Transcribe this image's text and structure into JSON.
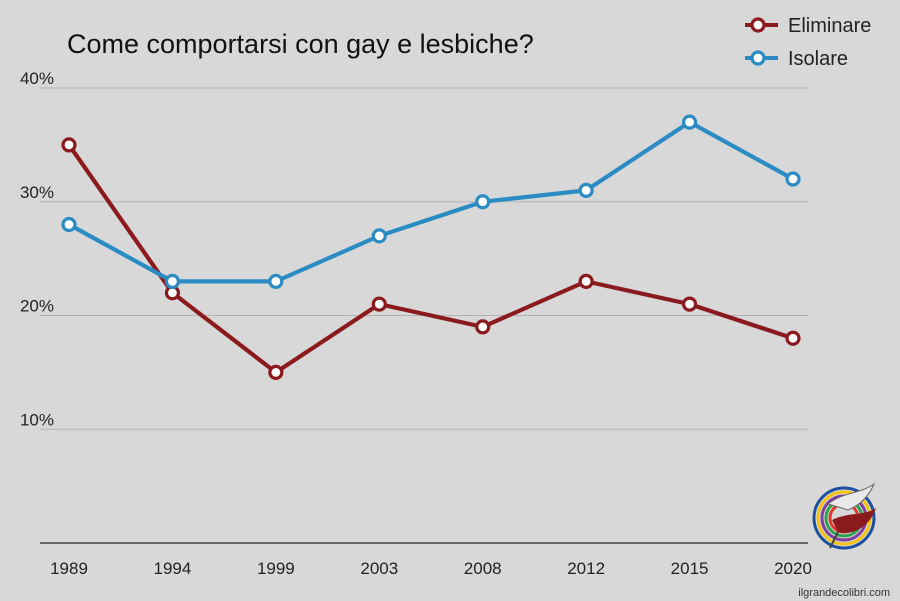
{
  "chart_data": {
    "type": "line",
    "title": "Come comportarsi con gay e lesbiche?",
    "categories": [
      "1989",
      "1994",
      "1999",
      "2003",
      "2008",
      "2012",
      "2015",
      "2020"
    ],
    "series": [
      {
        "name": "Eliminare",
        "color": "#8b1a1f",
        "values": [
          35,
          22,
          15,
          21,
          19,
          23,
          21,
          18
        ]
      },
      {
        "name": "Isolare",
        "color": "#2b8cc4",
        "values": [
          28,
          23,
          23,
          27,
          30,
          31,
          37,
          32
        ]
      }
    ],
    "ylim": [
      0,
      40
    ],
    "yticks": [
      10,
      20,
      30,
      40
    ],
    "ytick_labels": [
      "10%",
      "20%",
      "30%",
      "40%"
    ],
    "xlabel": "",
    "ylabel": "",
    "grid": "horizontal",
    "legend_position": "top-right"
  },
  "logo": {
    "name": "hummingbird-logo",
    "caption": "ilgrandecolibri.com"
  }
}
